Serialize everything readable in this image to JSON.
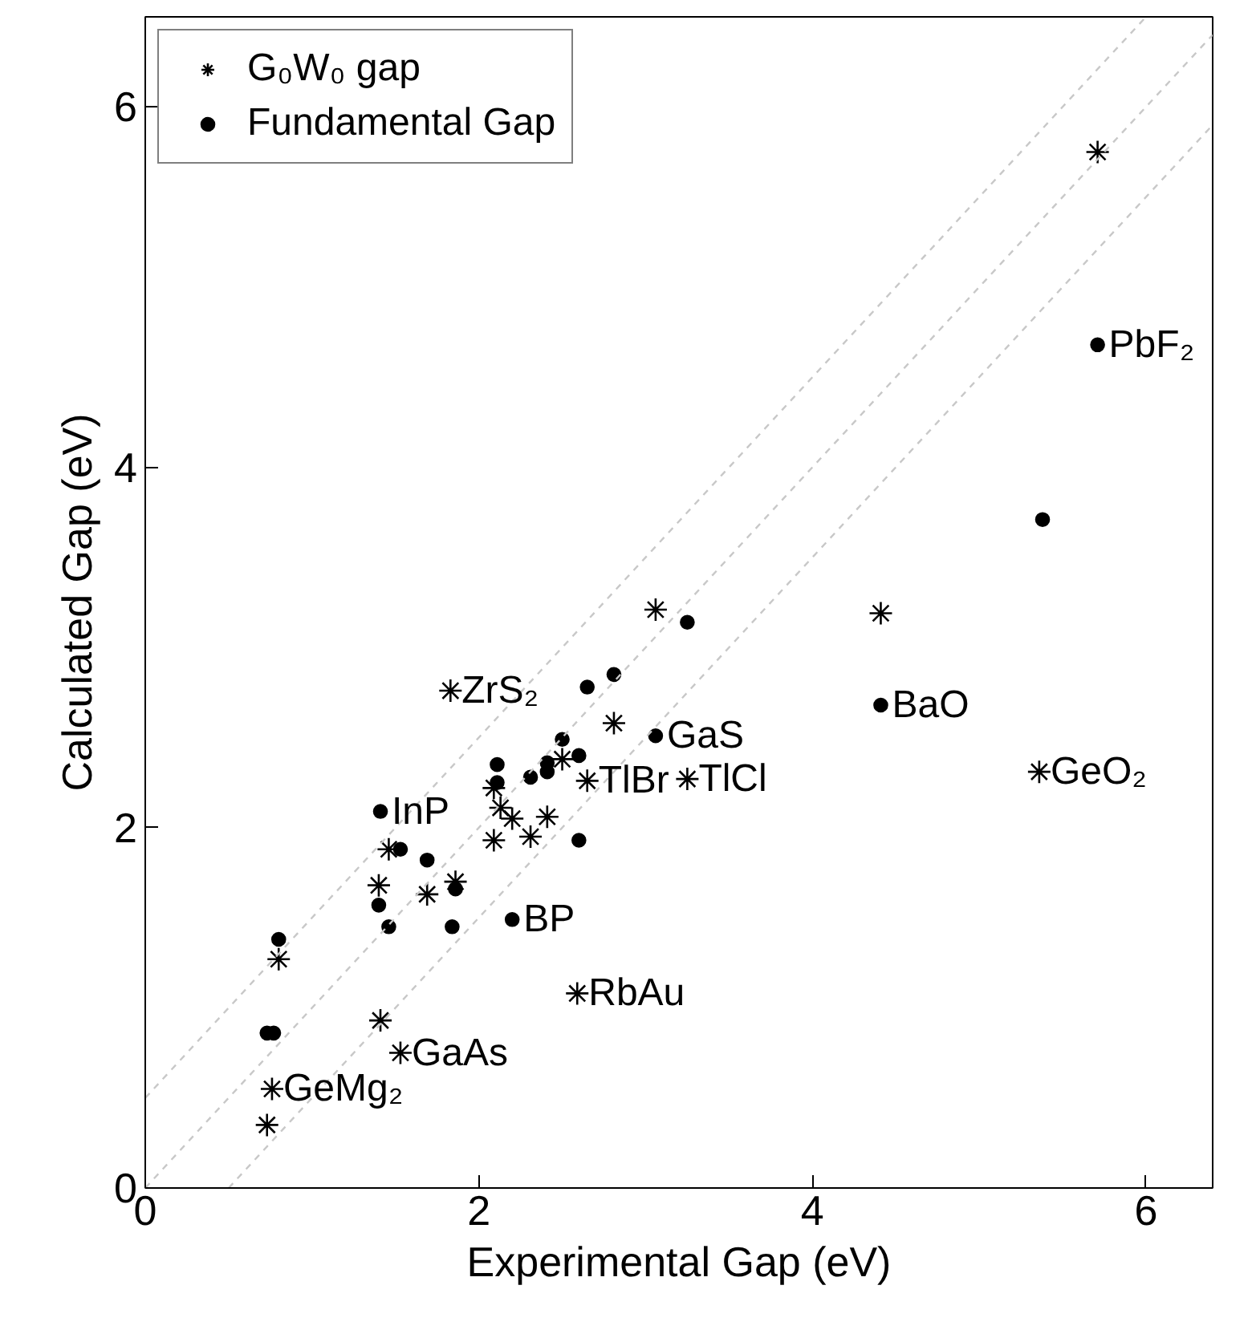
{
  "chart_data": {
    "type": "scatter",
    "xlabel": "Experimental Gap (eV)",
    "ylabel": "Calculated Gap (eV)",
    "xlim": [
      0,
      6.4
    ],
    "ylim": [
      0,
      6.5
    ],
    "xticks": [
      0,
      2,
      4,
      6
    ],
    "yticks": [
      0,
      2,
      4,
      6
    ],
    "grid": false,
    "legend": "top left",
    "series": [
      {
        "name": "G₀W₀ gap",
        "marker": "cross",
        "color": "#000000",
        "x": [
          1.83,
          2.81,
          3.25,
          2.5,
          2.65,
          2.41,
          2.31,
          2.2,
          2.13,
          2.09,
          2.09,
          1.46,
          1.4,
          1.69,
          1.86,
          0.8,
          2.59,
          1.41,
          1.53,
          0.76,
          0.73,
          5.71,
          3.06,
          4.41,
          5.36
        ],
        "values": [
          2.76,
          2.58,
          2.27,
          2.38,
          2.26,
          2.06,
          1.95,
          2.05,
          2.11,
          2.22,
          1.93,
          1.88,
          1.68,
          1.63,
          1.7,
          1.27,
          1.08,
          0.93,
          0.75,
          0.55,
          0.35,
          5.75,
          3.21,
          3.19,
          2.31
        ]
      },
      {
        "name": "Fundamental Gap",
        "marker": "circle",
        "color": "#000000",
        "x": [
          2.65,
          2.81,
          3.06,
          2.5,
          2.41,
          2.41,
          2.6,
          2.31,
          2.11,
          2.11,
          2.6,
          1.41,
          1.53,
          1.69,
          1.4,
          1.86,
          1.46,
          1.84,
          2.2,
          0.8,
          0.73,
          0.77,
          5.71,
          5.38,
          3.25,
          4.41
        ],
        "values": [
          2.78,
          2.85,
          2.51,
          2.49,
          2.36,
          2.31,
          2.4,
          2.28,
          2.35,
          2.25,
          1.93,
          2.09,
          1.88,
          1.82,
          1.57,
          1.66,
          1.45,
          1.45,
          1.49,
          1.38,
          0.86,
          0.86,
          4.68,
          3.71,
          3.14,
          2.68
        ]
      },
      {
        "type": "line",
        "line_style": "dashed",
        "color": "#c8c8c8",
        "x": [
          0,
          6.0
        ],
        "values": [
          0.5,
          6.5
        ]
      },
      {
        "type": "line",
        "line_style": "dashed",
        "color": "#c8c8c8",
        "x": [
          0,
          6.4
        ],
        "values": [
          0,
          6.4
        ]
      },
      {
        "type": "line",
        "line_style": "dashed",
        "color": "#c8c8c8",
        "x": [
          0.5,
          6.4
        ],
        "values": [
          0,
          5.9
        ]
      }
    ],
    "annotations": [
      {
        "text": "ZrS₂",
        "x": 1.83,
        "y": 2.76
      },
      {
        "text": "GaS",
        "x": 3.06,
        "y": 2.51
      },
      {
        "text": "TlBr",
        "x": 2.65,
        "y": 2.26
      },
      {
        "text": "TlCl",
        "x": 3.25,
        "y": 2.27
      },
      {
        "text": "InP",
        "x": 1.41,
        "y": 2.09
      },
      {
        "text": "BP",
        "x": 2.2,
        "y": 1.49
      },
      {
        "text": "RbAu",
        "x": 2.59,
        "y": 1.08
      },
      {
        "text": "GaAs",
        "x": 1.53,
        "y": 0.75
      },
      {
        "text": "GeMg₂",
        "x": 0.76,
        "y": 0.55
      },
      {
        "text": "PbF₂",
        "x": 5.71,
        "y": 4.68
      },
      {
        "text": "BaO",
        "x": 4.41,
        "y": 2.68
      },
      {
        "text": "GeO₂",
        "x": 5.36,
        "y": 2.31
      }
    ]
  }
}
